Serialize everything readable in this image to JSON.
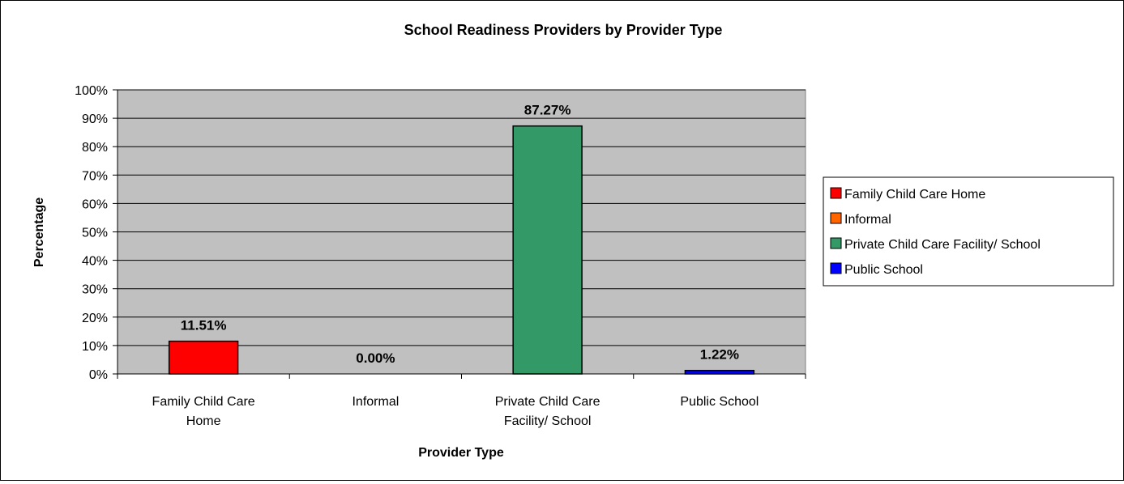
{
  "chart_data": {
    "type": "bar",
    "title": "School Readiness Providers by Provider Type",
    "xlabel": "Provider Type",
    "ylabel": "Percentage",
    "categories": [
      [
        "Family Child Care",
        "Home"
      ],
      [
        "Informal"
      ],
      [
        "Private Child Care",
        "Facility/ School"
      ],
      [
        "Public School"
      ]
    ],
    "values": [
      11.51,
      0.0,
      87.27,
      1.22
    ],
    "data_labels": [
      "11.51%",
      "0.00%",
      "87.27%",
      "1.22%"
    ],
    "colors": [
      "#ff0000",
      "#ff6600",
      "#339966",
      "#0000ff"
    ],
    "ylim": [
      0,
      100
    ],
    "yticks": [
      "0%",
      "10%",
      "20%",
      "30%",
      "40%",
      "50%",
      "60%",
      "70%",
      "80%",
      "90%",
      "100%"
    ],
    "plot_background": "#c0c0c0",
    "grid": true,
    "legend": {
      "position": "right",
      "entries": [
        "Family Child Care Home",
        "Informal",
        "Private Child Care Facility/ School",
        "Public School"
      ]
    }
  }
}
